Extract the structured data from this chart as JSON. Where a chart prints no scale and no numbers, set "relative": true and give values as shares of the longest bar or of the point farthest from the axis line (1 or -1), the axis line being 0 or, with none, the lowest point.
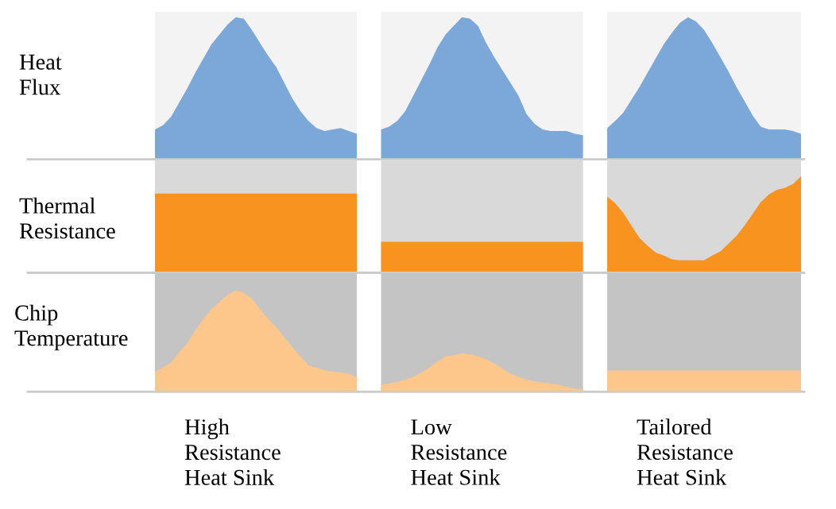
{
  "chart_data": [
    {
      "type": "area",
      "relative": true,
      "ylabel": "Heat\nFlux",
      "categories": [
        null,
        null,
        null,
        null,
        null,
        null,
        null,
        null,
        null,
        null,
        null,
        null,
        null,
        null,
        null,
        null,
        null,
        null,
        null,
        null,
        null,
        null,
        null,
        null,
        null,
        null,
        null,
        null,
        null,
        null,
        null,
        null,
        null,
        null,
        null,
        null,
        null,
        null,
        null,
        null,
        null,
        null,
        null,
        null,
        null,
        null,
        null,
        null,
        null,
        null,
        null,
        null,
        null,
        null,
        null,
        null,
        null,
        null,
        null,
        null,
        null,
        null,
        null,
        null,
        null,
        null,
        null,
        null,
        null,
        null,
        null,
        null,
        null,
        null,
        null,
        null,
        null,
        null,
        null,
        null,
        null
      ],
      "series": [
        {
          "color": "#7ba7d9",
          "values": [
            0.21,
            0.24,
            0.3,
            0.4,
            0.5,
            0.61,
            0.71,
            0.81,
            0.88,
            0.95,
            1.0,
            0.99,
            0.91,
            0.82,
            0.73,
            0.65,
            0.54,
            0.43,
            0.34,
            0.27,
            0.22,
            0.2,
            0.21,
            0.22,
            0.2,
            0.18,
            null,
            null,
            null,
            null,
            null,
            null,
            null,
            null,
            null,
            null,
            null,
            null,
            null,
            null,
            null,
            null,
            null,
            null,
            null,
            null,
            null,
            null,
            null,
            null,
            null,
            null,
            null,
            null,
            null,
            null,
            null,
            null,
            null,
            null,
            null,
            null,
            null,
            null,
            null,
            null,
            null,
            null,
            null,
            null,
            null,
            null,
            null,
            null,
            null,
            null,
            null,
            null,
            null,
            null,
            null
          ]
        },
        {
          "color": "#7ba7d9",
          "values": [
            null,
            null,
            null,
            null,
            null,
            null,
            null,
            null,
            null,
            null,
            null,
            null,
            null,
            null,
            null,
            null,
            null,
            null,
            null,
            null,
            null,
            null,
            null,
            null,
            null,
            null,
            null,
            null,
            0.21,
            0.23,
            0.27,
            0.34,
            0.45,
            0.56,
            0.67,
            0.79,
            0.88,
            0.94,
            1.0,
            0.99,
            0.94,
            0.82,
            0.72,
            0.63,
            0.54,
            0.45,
            0.32,
            0.25,
            0.21,
            0.2,
            0.2,
            0.2,
            0.18,
            0.17,
            null,
            null,
            null,
            null,
            null,
            null,
            null,
            null,
            null,
            null,
            null,
            null,
            null,
            null,
            null,
            null,
            null,
            null,
            null,
            null,
            null,
            null,
            null,
            null,
            null,
            null,
            null
          ]
        },
        {
          "color": "#7ba7d9",
          "values": [
            null,
            null,
            null,
            null,
            null,
            null,
            null,
            null,
            null,
            null,
            null,
            null,
            null,
            null,
            null,
            null,
            null,
            null,
            null,
            null,
            null,
            null,
            null,
            null,
            null,
            null,
            null,
            null,
            null,
            null,
            null,
            null,
            null,
            null,
            null,
            null,
            null,
            null,
            null,
            null,
            null,
            null,
            null,
            null,
            null,
            null,
            null,
            null,
            null,
            null,
            null,
            null,
            null,
            null,
            null,
            null,
            0.22,
            0.27,
            0.33,
            0.42,
            0.51,
            0.61,
            0.71,
            0.81,
            0.89,
            0.96,
            1.0,
            0.97,
            0.91,
            0.82,
            0.72,
            0.62,
            0.51,
            0.41,
            0.31,
            0.23,
            0.21,
            0.21,
            0.21,
            0.2,
            0.18
          ]
        }
      ]
    },
    {
      "type": "area",
      "relative": true,
      "ylabel": "Thermal\nResistance",
      "categories": [
        null,
        null,
        null,
        null,
        null,
        null,
        null,
        null,
        null,
        null,
        null,
        null,
        null,
        null,
        null,
        null,
        null,
        null,
        null,
        null,
        null,
        null,
        null,
        null,
        null,
        null,
        null,
        null,
        null,
        null,
        null,
        null,
        null,
        null,
        null,
        null,
        null,
        null,
        null,
        null,
        null,
        null,
        null,
        null,
        null,
        null,
        null,
        null,
        null,
        null,
        null,
        null,
        null,
        null,
        null,
        null,
        null,
        null,
        null,
        null,
        null,
        null,
        null,
        null,
        null,
        null,
        null,
        null,
        null,
        null,
        null,
        null,
        null,
        null,
        null,
        null,
        null,
        null,
        null,
        null,
        null
      ],
      "series": [
        {
          "color": "#f7931e",
          "values": [
            0.82,
            0.82,
            0.82,
            0.82,
            0.82,
            0.82,
            0.82,
            0.82,
            0.82,
            0.82,
            0.82,
            0.82,
            0.82,
            0.82,
            0.82,
            0.82,
            0.82,
            0.82,
            0.82,
            0.82,
            0.82,
            0.82,
            0.82,
            0.82,
            0.82,
            0.82,
            null,
            null,
            null,
            null,
            null,
            null,
            null,
            null,
            null,
            null,
            null,
            null,
            null,
            null,
            null,
            null,
            null,
            null,
            null,
            null,
            null,
            null,
            null,
            null,
            null,
            null,
            null,
            null,
            null,
            null,
            null,
            null,
            null,
            null,
            null,
            null,
            null,
            null,
            null,
            null,
            null,
            null,
            null,
            null,
            null,
            null,
            null,
            null,
            null,
            null,
            null,
            null,
            null,
            null,
            null
          ]
        },
        {
          "color": "#f7931e",
          "values": [
            null,
            null,
            null,
            null,
            null,
            null,
            null,
            null,
            null,
            null,
            null,
            null,
            null,
            null,
            null,
            null,
            null,
            null,
            null,
            null,
            null,
            null,
            null,
            null,
            null,
            null,
            null,
            null,
            0.32,
            0.32,
            0.32,
            0.32,
            0.32,
            0.32,
            0.32,
            0.32,
            0.32,
            0.32,
            0.32,
            0.32,
            0.32,
            0.32,
            0.32,
            0.32,
            0.32,
            0.32,
            0.32,
            0.32,
            0.32,
            0.32,
            0.32,
            0.32,
            0.32,
            0.32,
            null,
            null,
            null,
            null,
            null,
            null,
            null,
            null,
            null,
            null,
            null,
            null,
            null,
            null,
            null,
            null,
            null,
            null,
            null,
            null,
            null,
            null,
            null,
            null,
            null,
            null,
            null
          ]
        },
        {
          "color": "#f7931e",
          "values": [
            null,
            null,
            null,
            null,
            null,
            null,
            null,
            null,
            null,
            null,
            null,
            null,
            null,
            null,
            null,
            null,
            null,
            null,
            null,
            null,
            null,
            null,
            null,
            null,
            null,
            null,
            null,
            null,
            null,
            null,
            null,
            null,
            null,
            null,
            null,
            null,
            null,
            null,
            null,
            null,
            null,
            null,
            null,
            null,
            null,
            null,
            null,
            null,
            null,
            null,
            null,
            null,
            null,
            null,
            null,
            null,
            0.79,
            0.72,
            0.62,
            0.49,
            0.36,
            0.28,
            0.21,
            0.18,
            0.14,
            0.13,
            0.13,
            0.13,
            0.13,
            0.18,
            0.22,
            0.3,
            0.38,
            0.49,
            0.61,
            0.73,
            0.81,
            0.86,
            0.88,
            0.92,
            1.0
          ]
        }
      ]
    },
    {
      "type": "area",
      "relative": true,
      "ylabel": "Chip\nTemperature",
      "categories": [
        null,
        null,
        null,
        null,
        null,
        null,
        null,
        null,
        null,
        null,
        null,
        null,
        null,
        null,
        null,
        null,
        null,
        null,
        null,
        null,
        null,
        null,
        null,
        null,
        null,
        null,
        null,
        null,
        null,
        null,
        null,
        null,
        null,
        null,
        null,
        null,
        null,
        null,
        null,
        null,
        null,
        null,
        null,
        null,
        null,
        null,
        null,
        null,
        null,
        null,
        null,
        null,
        null,
        null,
        null,
        null,
        null,
        null,
        null,
        null,
        null,
        null,
        null,
        null,
        null,
        null,
        null,
        null,
        null,
        null,
        null,
        null,
        null,
        null,
        null,
        null,
        null,
        null,
        null,
        null,
        null
      ],
      "series": [
        {
          "name": "High\nResistance\nHeat Sink",
          "color": "#fdc68a",
          "values": [
            0.2,
            0.24,
            0.29,
            0.39,
            0.48,
            0.61,
            0.72,
            0.82,
            0.89,
            0.96,
            1.0,
            0.98,
            0.92,
            0.82,
            0.72,
            0.64,
            0.54,
            0.44,
            0.35,
            0.26,
            0.24,
            0.21,
            0.2,
            0.19,
            0.18,
            0.14,
            null,
            null,
            null,
            null,
            null,
            null,
            null,
            null,
            null,
            null,
            null,
            null,
            null,
            null,
            null,
            null,
            null,
            null,
            null,
            null,
            null,
            null,
            null,
            null,
            null,
            null,
            null,
            null,
            null,
            null,
            null,
            null,
            null,
            null,
            null,
            null,
            null,
            null,
            null,
            null,
            null,
            null,
            null,
            null,
            null,
            null,
            null,
            null,
            null,
            null,
            null,
            null,
            null,
            null,
            null
          ]
        },
        {
          "name": "Low\nResistance\nHeat Sink",
          "color": "#fdc68a",
          "values": [
            null,
            null,
            null,
            null,
            null,
            null,
            null,
            null,
            null,
            null,
            null,
            null,
            null,
            null,
            null,
            null,
            null,
            null,
            null,
            null,
            null,
            null,
            null,
            null,
            null,
            null,
            null,
            null,
            0.07,
            0.08,
            0.1,
            0.12,
            0.15,
            0.19,
            0.24,
            0.3,
            0.35,
            0.36,
            0.38,
            0.37,
            0.35,
            0.32,
            0.28,
            0.23,
            0.18,
            0.15,
            0.12,
            0.1,
            0.09,
            0.08,
            0.07,
            0.05,
            0.03,
            0.03,
            null,
            null,
            null,
            null,
            null,
            null,
            null,
            null,
            null,
            null,
            null,
            null,
            null,
            null,
            null,
            null,
            null,
            null,
            null,
            null,
            null,
            null,
            null,
            null,
            null,
            null,
            null
          ]
        },
        {
          "name": "Tailored\nResistance\nHeat Sink",
          "color": "#fdc68a",
          "values": [
            null,
            null,
            null,
            null,
            null,
            null,
            null,
            null,
            null,
            null,
            null,
            null,
            null,
            null,
            null,
            null,
            null,
            null,
            null,
            null,
            null,
            null,
            null,
            null,
            null,
            null,
            null,
            null,
            null,
            null,
            null,
            null,
            null,
            null,
            null,
            null,
            null,
            null,
            null,
            null,
            null,
            null,
            null,
            null,
            null,
            null,
            null,
            null,
            null,
            null,
            null,
            null,
            null,
            null,
            null,
            null,
            0.21,
            0.21,
            0.21,
            0.21,
            0.21,
            0.21,
            0.21,
            0.21,
            0.21,
            0.21,
            0.21,
            0.21,
            0.21,
            0.21,
            0.21,
            0.21,
            0.21,
            0.21,
            0.21,
            0.21,
            0.21,
            0.21,
            0.21,
            0.21,
            0.21
          ]
        }
      ]
    }
  ]
}
